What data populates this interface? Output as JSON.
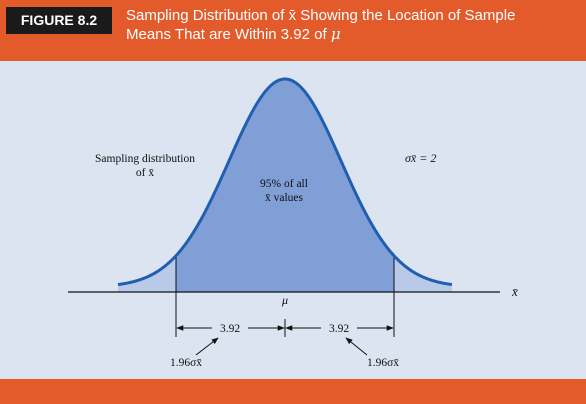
{
  "figure": {
    "label": "FIGURE 8.2",
    "title_line1": "Sampling Distribution of x̄ Showing the Location of Sample",
    "title_line2": "Means That are Within 3.92 of ",
    "title_mu": "μ"
  },
  "diagram": {
    "dist_label_line1": "Sampling distribution",
    "dist_label_line2": "of x̄",
    "center_label_line1": "95% of all",
    "center_label_line2": "x̄ values",
    "sigma_label": "σx̄ = 2",
    "mu_label": "μ",
    "axis_label": "x̄",
    "left_interval": "3.92",
    "right_interval": "3.92",
    "left_sigma": "1.96σx̄",
    "right_sigma": "1.96σx̄"
  },
  "colors": {
    "header": "#e35a2b",
    "panel": "#dce3f1",
    "curve": "#1f5fb0",
    "fill_central": "#7f9fd6",
    "fill_tail": "#b9c9e8"
  }
}
